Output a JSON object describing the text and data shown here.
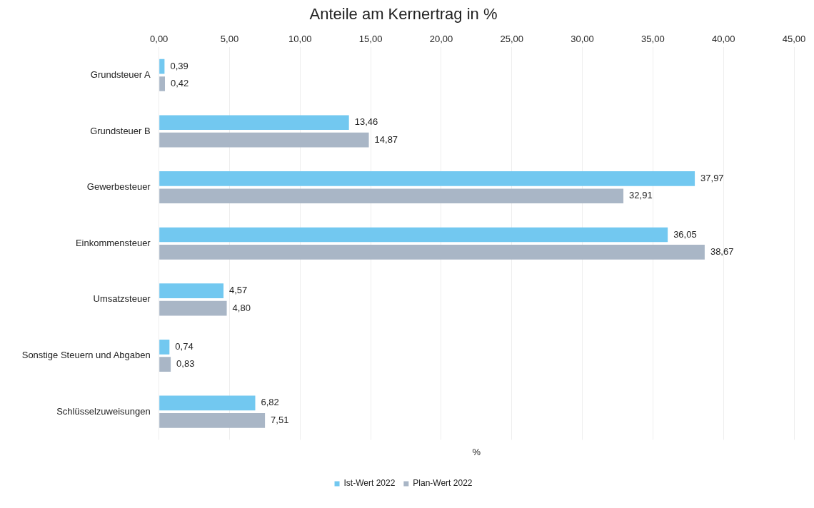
{
  "chart_data": {
    "type": "bar",
    "orientation": "horizontal",
    "title": "Anteile am Kernertrag in %",
    "xlabel": "%",
    "categories": [
      "Grundsteuer A",
      "Grundsteuer B",
      "Gewerbesteuer",
      "Einkommensteuer",
      "Umsatzsteuer",
      "Sonstige Steuern und Abgaben",
      "Schlüsselzuweisungen"
    ],
    "series": [
      {
        "name": "Ist-Wert 2022",
        "color": "#72c8f0",
        "values": [
          0.39,
          13.46,
          37.97,
          36.05,
          4.57,
          0.74,
          6.82
        ],
        "value_labels": [
          "0,39",
          "13,46",
          "37,97",
          "36,05",
          "4,57",
          "0,74",
          "6,82"
        ]
      },
      {
        "name": "Plan-Wert 2022",
        "color": "#a9b6c6",
        "values": [
          0.42,
          14.87,
          32.91,
          38.67,
          4.8,
          0.83,
          7.51
        ],
        "value_labels": [
          "0,42",
          "14,87",
          "32,91",
          "38,67",
          "4,80",
          "0,83",
          "7,51"
        ]
      }
    ],
    "xlim": [
      0,
      45
    ],
    "xticks": [
      {
        "value": 0,
        "label": "0,00"
      },
      {
        "value": 5,
        "label": "5,00"
      },
      {
        "value": 10,
        "label": "10,00"
      },
      {
        "value": 15,
        "label": "15,00"
      },
      {
        "value": 20,
        "label": "20,00"
      },
      {
        "value": 25,
        "label": "25,00"
      },
      {
        "value": 30,
        "label": "30,00"
      },
      {
        "value": 35,
        "label": "35,00"
      },
      {
        "value": 40,
        "label": "40,00"
      },
      {
        "value": 45,
        "label": "45,00"
      }
    ],
    "grid": "x",
    "legend": "bottom"
  }
}
